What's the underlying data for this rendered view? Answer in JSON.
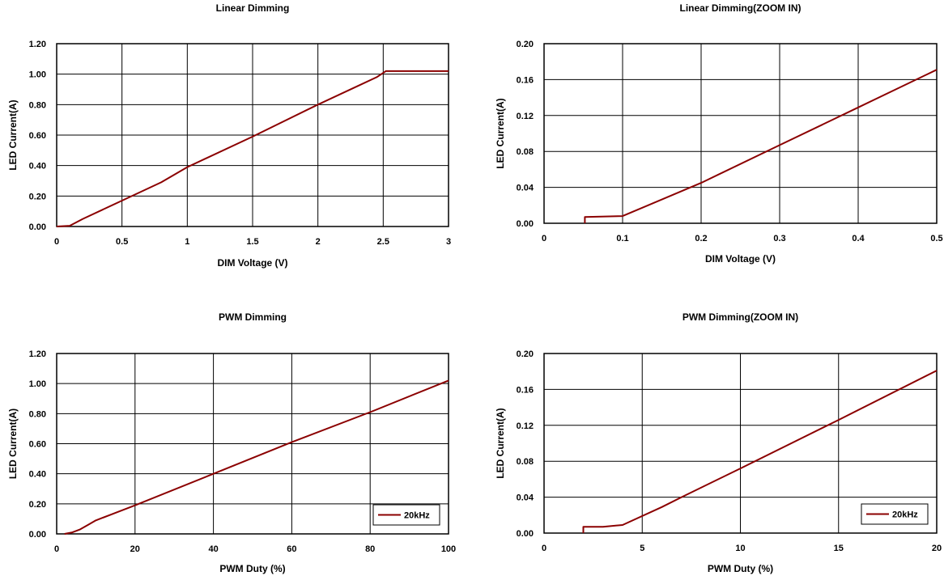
{
  "chart_data": [
    {
      "type": "line",
      "title": "Linear Dimming",
      "xlabel": "DIM Voltage (V)",
      "ylabel": "LED Current(A)",
      "xlim": [
        0,
        3
      ],
      "ylim": [
        0,
        1.2
      ],
      "xticks": [
        0,
        0.5,
        1,
        1.5,
        2,
        2.5,
        3
      ],
      "xtick_labels": [
        "0",
        "0.5",
        "1",
        "1.5",
        "2",
        "2.5",
        "3"
      ],
      "yticks": [
        0,
        0.2,
        0.4,
        0.6,
        0.8,
        1.0,
        1.2
      ],
      "ytick_labels": [
        "0.00",
        "0.20",
        "0.40",
        "0.60",
        "0.80",
        "1.00",
        "1.20"
      ],
      "grid": true,
      "color": "#8B0000",
      "legend": null,
      "series": [
        {
          "name": "",
          "x": [
            0,
            0.1,
            0.2,
            0.5,
            0.8,
            1.0,
            1.5,
            2.0,
            2.3,
            2.45,
            2.52,
            3.0
          ],
          "y": [
            0,
            0.005,
            0.05,
            0.17,
            0.29,
            0.39,
            0.59,
            0.8,
            0.92,
            0.98,
            1.02,
            1.02
          ]
        }
      ]
    },
    {
      "type": "line",
      "title": "Linear Dimming(ZOOM IN)",
      "xlabel": "DIM Voltage (V)",
      "ylabel": "LED Current(A)",
      "xlim": [
        0,
        0.5
      ],
      "ylim": [
        0,
        0.2
      ],
      "xticks": [
        0,
        0.1,
        0.2,
        0.3,
        0.4,
        0.5
      ],
      "xtick_labels": [
        "0",
        "0.1",
        "0.2",
        "0.3",
        "0.4",
        "0.5"
      ],
      "yticks": [
        0,
        0.04,
        0.08,
        0.12,
        0.16,
        0.2
      ],
      "ytick_labels": [
        "0.00",
        "0.04",
        "0.08",
        "0.12",
        "0.16",
        "0.20"
      ],
      "grid": true,
      "color": "#8B0000",
      "legend": null,
      "series": [
        {
          "name": "",
          "x": [
            0.052,
            0.052,
            0.1,
            0.2,
            0.3,
            0.4,
            0.5
          ],
          "y": [
            0,
            0.007,
            0.008,
            0.045,
            0.087,
            0.129,
            0.171
          ]
        }
      ]
    },
    {
      "type": "line",
      "title": "PWM Dimming",
      "xlabel": "PWM Duty (%)",
      "ylabel": "LED Current(A)",
      "xlim": [
        0,
        100
      ],
      "ylim": [
        0,
        1.2
      ],
      "xticks": [
        0,
        20,
        40,
        60,
        80,
        100
      ],
      "xtick_labels": [
        "0",
        "20",
        "40",
        "60",
        "80",
        "100"
      ],
      "yticks": [
        0,
        0.2,
        0.4,
        0.6,
        0.8,
        1.0,
        1.2
      ],
      "ytick_labels": [
        "0.00",
        "0.20",
        "0.40",
        "0.60",
        "0.80",
        "1.00",
        "1.20"
      ],
      "grid": true,
      "color": "#8B0000",
      "legend": {
        "position": "bottom-right",
        "entries": [
          "20kHz"
        ]
      },
      "series": [
        {
          "name": "20kHz",
          "x": [
            2,
            4,
            6,
            8,
            10,
            20,
            40,
            60,
            80,
            100
          ],
          "y": [
            0,
            0.01,
            0.03,
            0.06,
            0.09,
            0.19,
            0.4,
            0.61,
            0.81,
            1.02
          ]
        }
      ]
    },
    {
      "type": "line",
      "title": "PWM Dimming(ZOOM IN)",
      "xlabel": "PWM Duty (%)",
      "ylabel": "LED Current(A)",
      "xlim": [
        0,
        20
      ],
      "ylim": [
        0,
        0.2
      ],
      "xticks": [
        0,
        5,
        10,
        15,
        20
      ],
      "xtick_labels": [
        "0",
        "5",
        "10",
        "15",
        "20"
      ],
      "yticks": [
        0,
        0.04,
        0.08,
        0.12,
        0.16,
        0.2
      ],
      "ytick_labels": [
        "0.00",
        "0.04",
        "0.08",
        "0.12",
        "0.16",
        "0.20"
      ],
      "grid": true,
      "color": "#8B0000",
      "legend": {
        "position": "bottom-right",
        "entries": [
          "20kHz"
        ]
      },
      "series": [
        {
          "name": "20kHz",
          "x": [
            2,
            2,
            3,
            4,
            6,
            7,
            10,
            15,
            20
          ],
          "y": [
            0,
            0.007,
            0.007,
            0.009,
            0.029,
            0.04,
            0.072,
            0.126,
            0.181
          ]
        }
      ]
    }
  ]
}
